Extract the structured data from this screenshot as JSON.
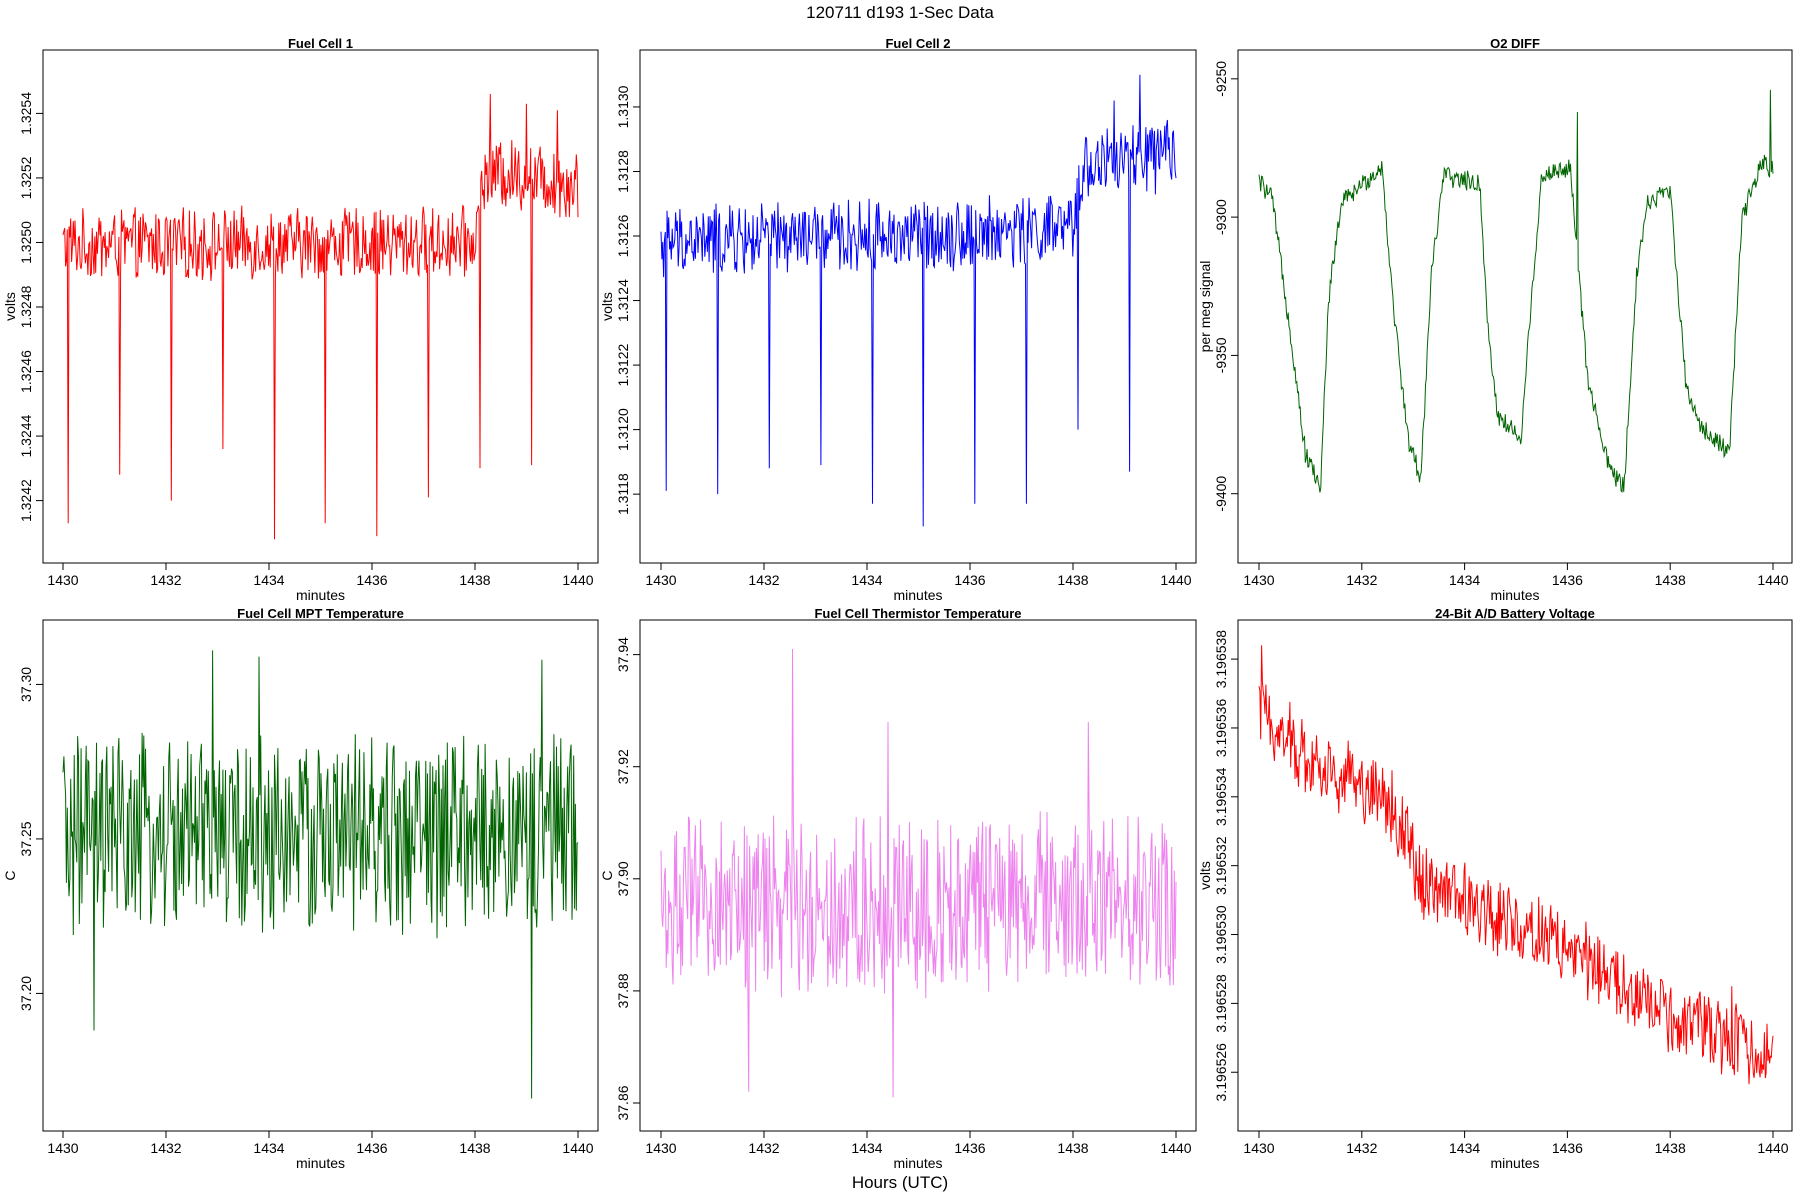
{
  "figure": {
    "title": "120711   d193   1-Sec Data",
    "footer": "Hours (UTC)"
  },
  "chart_data": [
    {
      "type": "line",
      "title": "Fuel Cell 1",
      "xlabel": "minutes",
      "ylabel": "volts",
      "color": "#ff0000",
      "xlim": [
        1430,
        1440
      ],
      "ylim": [
        1.32405,
        1.32555
      ],
      "xticks": [
        1430,
        1432,
        1434,
        1436,
        1438,
        1440
      ],
      "xtick_labels": [
        "1430",
        "1432",
        "1434",
        "1436",
        "1438",
        "1440"
      ],
      "yticks": [
        1.3242,
        1.3244,
        1.3246,
        1.3248,
        1.325,
        1.3252,
        1.3254
      ],
      "ytick_labels": [
        "1.3242",
        "1.3244",
        "1.3246",
        "1.3248",
        "1.3250",
        "1.3252",
        "1.3254"
      ],
      "series": [
        {
          "name": "Fuel Cell 1",
          "n": 600,
          "segments": [
            [
              1430,
              1.32499
            ],
            [
              1438,
              1.325
            ],
            [
              1438.2,
              1.32522
            ],
            [
              1440,
              1.32518
            ]
          ],
          "noise": 0.00012,
          "spikes": [
            [
              1430.1,
              1.32413
            ],
            [
              1431.1,
              1.32428
            ],
            [
              1432.1,
              1.3242
            ],
            [
              1433.1,
              1.32436
            ],
            [
              1434.1,
              1.32408
            ],
            [
              1435.1,
              1.32413
            ],
            [
              1436.1,
              1.32409
            ],
            [
              1437.1,
              1.32421
            ],
            [
              1438.1,
              1.3243
            ],
            [
              1439.1,
              1.32431
            ]
          ],
          "peaks": [
            [
              1438.3,
              1.32546
            ],
            [
              1439.0,
              1.32543
            ],
            [
              1439.6,
              1.32541
            ]
          ]
        }
      ]
    },
    {
      "type": "line",
      "title": "Fuel Cell 2",
      "xlabel": "minutes",
      "ylabel": "volts",
      "color": "#0000ff",
      "xlim": [
        1430,
        1440
      ],
      "ylim": [
        1.31163,
        1.31313
      ],
      "xticks": [
        1430,
        1432,
        1434,
        1436,
        1438,
        1440
      ],
      "xtick_labels": [
        "1430",
        "1432",
        "1434",
        "1436",
        "1438",
        "1440"
      ],
      "yticks": [
        1.3118,
        1.312,
        1.3122,
        1.3124,
        1.3126,
        1.3128,
        1.313
      ],
      "ytick_labels": [
        "1.3118",
        "1.3120",
        "1.3122",
        "1.3124",
        "1.3126",
        "1.3128",
        "1.3130"
      ],
      "series": [
        {
          "name": "Fuel Cell 2",
          "n": 600,
          "segments": [
            [
              1430,
              1.31258
            ],
            [
              1438,
              1.31262
            ],
            [
              1438.2,
              1.31282
            ],
            [
              1440,
              1.31285
            ]
          ],
          "noise": 0.00012,
          "spikes": [
            [
              1430.1,
              1.31181
            ],
            [
              1431.1,
              1.3118
            ],
            [
              1432.1,
              1.31188
            ],
            [
              1433.1,
              1.31189
            ],
            [
              1434.1,
              1.31177
            ],
            [
              1435.1,
              1.3117
            ],
            [
              1436.1,
              1.31177
            ],
            [
              1437.1,
              1.31177
            ],
            [
              1438.1,
              1.312
            ],
            [
              1439.1,
              1.31187
            ]
          ],
          "peaks": [
            [
              1439.3,
              1.3131
            ],
            [
              1438.8,
              1.31302
            ]
          ]
        }
      ]
    },
    {
      "type": "line",
      "title": "O2 DIFF",
      "xlabel": "minutes",
      "ylabel": "per meg signal",
      "color": "#006400",
      "xlim": [
        1430,
        1440
      ],
      "ylim": [
        -9420,
        -9245
      ],
      "xticks": [
        1430,
        1432,
        1434,
        1436,
        1438,
        1440
      ],
      "xtick_labels": [
        "1430",
        "1432",
        "1434",
        "1436",
        "1438",
        "1440"
      ],
      "yticks": [
        -9400,
        -9350,
        -9300,
        -9250
      ],
      "ytick_labels": [
        "-9400",
        "-9350",
        "-9300",
        "-9250"
      ],
      "series": [
        {
          "name": "O2 DIFF",
          "n": 600,
          "segments": [
            [
              1430,
              -9287
            ],
            [
              1430.25,
              -9293
            ],
            [
              1430.6,
              -9340
            ],
            [
              1430.9,
              -9385
            ],
            [
              1431.2,
              -9398
            ],
            [
              1431.35,
              -9330
            ],
            [
              1431.6,
              -9295
            ],
            [
              1432.4,
              -9282
            ],
            [
              1432.6,
              -9330
            ],
            [
              1432.9,
              -9380
            ],
            [
              1433.15,
              -9395
            ],
            [
              1433.35,
              -9320
            ],
            [
              1433.6,
              -9285
            ],
            [
              1434.3,
              -9288
            ],
            [
              1434.45,
              -9340
            ],
            [
              1434.65,
              -9372
            ],
            [
              1435.1,
              -9380
            ],
            [
              1435.3,
              -9330
            ],
            [
              1435.5,
              -9285
            ],
            [
              1436.05,
              -9282
            ],
            [
              1436.4,
              -9360
            ],
            [
              1436.8,
              -9390
            ],
            [
              1437.1,
              -9398
            ],
            [
              1437.35,
              -9320
            ],
            [
              1437.55,
              -9295
            ],
            [
              1438.0,
              -9290
            ],
            [
              1438.3,
              -9360
            ],
            [
              1438.6,
              -9376
            ],
            [
              1439.15,
              -9385
            ],
            [
              1439.4,
              -9300
            ],
            [
              1439.8,
              -9280
            ],
            [
              1440,
              -9283
            ]
          ],
          "noise": 4,
          "spikes": [],
          "peaks": [
            [
              1439.95,
              -9254
            ],
            [
              1436.2,
              -9262
            ]
          ]
        }
      ]
    },
    {
      "type": "line",
      "title": "Fuel Cell MPT Temperature",
      "xlabel": "minutes",
      "ylabel": "C",
      "color": "#006400",
      "xlim": [
        1430,
        1440
      ],
      "ylim": [
        37.16,
        37.316
      ],
      "xticks": [
        1430,
        1432,
        1434,
        1436,
        1438,
        1440
      ],
      "xtick_labels": [
        "1430",
        "1432",
        "1434",
        "1436",
        "1438",
        "1440"
      ],
      "yticks": [
        37.2,
        37.25,
        37.3
      ],
      "ytick_labels": [
        "37.20",
        "37.25",
        "37.30"
      ],
      "series": [
        {
          "name": "Fuel Cell MPT Temperature",
          "n": 600,
          "segments": [
            [
              1430,
              37.251
            ],
            [
              1440,
              37.251
            ]
          ],
          "noise": 0.035,
          "spikes": [
            [
              1439.1,
              37.166
            ],
            [
              1430.6,
              37.188
            ]
          ],
          "peaks": [
            [
              1432.9,
              37.311
            ],
            [
              1433.8,
              37.309
            ],
            [
              1439.3,
              37.308
            ]
          ]
        }
      ]
    },
    {
      "type": "line",
      "title": "Fuel Cell Thermistor Temperature",
      "xlabel": "minutes",
      "ylabel": "C",
      "color": "#ee82ee",
      "xlim": [
        1430,
        1440
      ],
      "ylim": [
        37.8575,
        37.9435
      ],
      "xticks": [
        1430,
        1432,
        1434,
        1436,
        1438,
        1440
      ],
      "xtick_labels": [
        "1430",
        "1432",
        "1434",
        "1436",
        "1438",
        "1440"
      ],
      "yticks": [
        37.86,
        37.88,
        37.9,
        37.92,
        37.94
      ],
      "ytick_labels": [
        "37.86",
        "37.88",
        "37.90",
        "37.92",
        "37.94"
      ],
      "series": [
        {
          "name": "Fuel Cell Thermistor Temperature",
          "n": 600,
          "segments": [
            [
              1430,
              37.895
            ],
            [
              1440,
              37.896
            ]
          ],
          "noise": 0.017,
          "spikes": [
            [
              1434.5,
              37.861
            ],
            [
              1431.7,
              37.862
            ]
          ],
          "peaks": [
            [
              1432.55,
              37.941
            ],
            [
              1434.4,
              37.928
            ],
            [
              1438.3,
              37.928
            ]
          ]
        }
      ]
    },
    {
      "type": "line",
      "title": "24-Bit A/D Battery Voltage",
      "xlabel": "minutes",
      "ylabel": "volts",
      "color": "#ff0000",
      "xlim": [
        1430,
        1440
      ],
      "ylim": [
        3.1965247,
        3.1965387
      ],
      "xticks": [
        1430,
        1432,
        1434,
        1436,
        1438,
        1440
      ],
      "xtick_labels": [
        "1430",
        "1432",
        "1434",
        "1436",
        "1438",
        "1440"
      ],
      "yticks": [
        3.196526,
        3.196528,
        3.19653,
        3.196532,
        3.196534,
        3.196536,
        3.196538
      ],
      "ytick_labels": [
        "3.196526",
        "3.196528",
        "3.196530",
        "3.196532",
        "3.196534",
        "3.196536",
        "3.196538"
      ],
      "series": [
        {
          "name": "24-Bit A/D Battery Voltage",
          "n": 600,
          "segments": [
            [
              1430,
              3.1965365
            ],
            [
              1431,
              3.196535
            ],
            [
              1432.5,
              3.196534
            ],
            [
              1433.2,
              3.1965315
            ],
            [
              1434,
              3.196531
            ],
            [
              1435,
              3.1965303
            ],
            [
              1436,
              3.1965296
            ],
            [
              1437,
              3.1965285
            ],
            [
              1438,
              3.1965275
            ],
            [
              1439,
              3.196527
            ],
            [
              1440,
              3.1965265
            ]
          ],
          "noise": 1.2e-06,
          "spikes": [],
          "peaks": [
            [
              1430.05,
              3.1965384
            ],
            [
              1439.2,
              3.1965285
            ]
          ]
        }
      ]
    }
  ]
}
